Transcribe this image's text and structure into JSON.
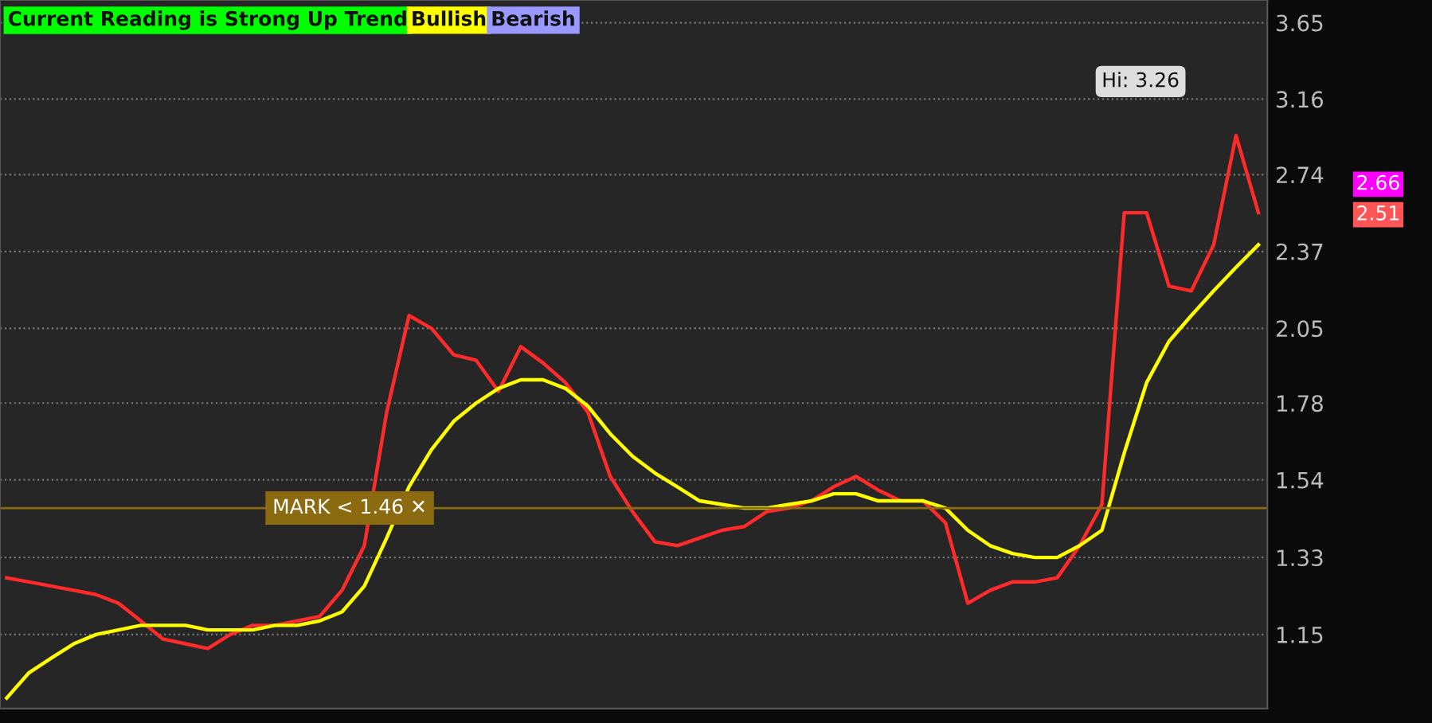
{
  "chart_data": {
    "type": "line",
    "categories": [
      null,
      null,
      null,
      null,
      null,
      null,
      null,
      null,
      null,
      null,
      null,
      null,
      null,
      null,
      null,
      null,
      null,
      null,
      null,
      null,
      null,
      null,
      null,
      null,
      null,
      null,
      null,
      null,
      null,
      null,
      null,
      null,
      null,
      null,
      null,
      null,
      null,
      null,
      null,
      null,
      null,
      null,
      null,
      null,
      null,
      null,
      null,
      null,
      null,
      null,
      null,
      null,
      null,
      null,
      null,
      null,
      null
    ],
    "series": [
      {
        "color": "#ff2a2a",
        "values": [
          1.28,
          1.27,
          1.26,
          1.25,
          1.24,
          1.22,
          1.18,
          1.14,
          1.13,
          1.12,
          1.15,
          1.17,
          1.17,
          1.18,
          1.19,
          1.25,
          1.36,
          1.75,
          2.1,
          2.05,
          1.95,
          1.93,
          1.82,
          1.98,
          1.92,
          1.85,
          1.75,
          1.55,
          1.45,
          1.37,
          1.36,
          1.38,
          1.4,
          1.41,
          1.45,
          1.46,
          1.48,
          1.52,
          1.55,
          1.51,
          1.48,
          1.48,
          1.42,
          1.22,
          1.25,
          1.27,
          1.27,
          1.28,
          1.36,
          1.47,
          2.55,
          2.55,
          2.22,
          2.2,
          2.4,
          2.95,
          2.55
        ]
      },
      {
        "color": "#ffff00",
        "values": [
          1.02,
          1.07,
          1.1,
          1.13,
          1.15,
          1.16,
          1.17,
          1.17,
          1.17,
          1.16,
          1.16,
          1.16,
          1.17,
          1.17,
          1.18,
          1.2,
          1.26,
          1.38,
          1.52,
          1.63,
          1.72,
          1.78,
          1.83,
          1.86,
          1.86,
          1.83,
          1.77,
          1.68,
          1.61,
          1.56,
          1.52,
          1.48,
          1.47,
          1.46,
          1.46,
          1.47,
          1.48,
          1.5,
          1.5,
          1.48,
          1.48,
          1.48,
          1.46,
          1.4,
          1.36,
          1.34,
          1.33,
          1.33,
          1.36,
          1.4,
          1.62,
          1.85,
          2.0,
          2.1,
          2.2,
          2.3,
          2.4
        ]
      }
    ],
    "log": "y",
    "ylim": [
      1.0,
      3.81
    ],
    "yticks": [
      1.15,
      1.33,
      1.54,
      1.78,
      2.05,
      2.37,
      2.74,
      3.16,
      3.65
    ],
    "tick_labels": "y",
    "grid": "y",
    "ref_lines": [
      {
        "axis": "y",
        "value": 1.46,
        "label": "MARK < 1.46 ✕",
        "color": "#8b6a10"
      }
    ],
    "annotations": [
      "Current Reading is Strong Up Trend",
      "Bullish",
      "Bearish",
      "Hi: 3.26",
      "2.66",
      "2.51"
    ]
  }
}
